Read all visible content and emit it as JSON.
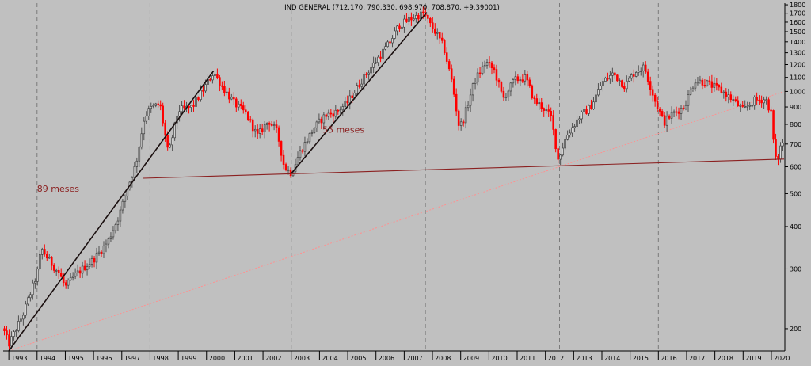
{
  "chart_data": {
    "type": "candlestick",
    "title": "IND GENERAL (712.170, 790.330, 698.970, 708.870, +9.39001)",
    "y_scale": "log",
    "ylim": [
      172,
      1820
    ],
    "xlim": [
      1992.8,
      2020.45
    ],
    "y_ticks": [
      1800,
      1700,
      1600,
      1500,
      1400,
      1300,
      1200,
      1100,
      1000,
      900,
      800,
      700,
      600,
      500,
      400,
      300,
      200
    ],
    "x_ticks": [
      "1993",
      "1994",
      "1995",
      "1996",
      "1997",
      "1998",
      "1999",
      "2000",
      "2001",
      "2002",
      "2003",
      "2004",
      "2005",
      "2006",
      "2007",
      "2008",
      "2009",
      "2010",
      "2011",
      "2012",
      "2013",
      "2014",
      "2015",
      "2016",
      "2017",
      "2018",
      "2019",
      "2020"
    ],
    "vertical_markers": [
      1994.0,
      1998.0,
      2003.0,
      2007.75,
      2012.5,
      2016.0
    ],
    "colors": {
      "up": "#505050",
      "down": "#ff0000",
      "background": "#c0c0c0",
      "line": "#000000",
      "trendline": "#8b2020",
      "dotted": "#ff9090"
    },
    "anchors": [
      [
        1992.8,
        200
      ],
      [
        1993.0,
        180
      ],
      [
        1993.5,
        220
      ],
      [
        1994.0,
        290
      ],
      [
        1994.15,
        345
      ],
      [
        1994.4,
        320
      ],
      [
        1994.8,
        290
      ],
      [
        1995.0,
        265
      ],
      [
        1995.3,
        285
      ],
      [
        1995.7,
        305
      ],
      [
        1996.0,
        320
      ],
      [
        1996.5,
        360
      ],
      [
        1996.9,
        430
      ],
      [
        1997.2,
        520
      ],
      [
        1997.5,
        610
      ],
      [
        1997.8,
        840
      ],
      [
        1998.0,
        890
      ],
      [
        1998.35,
        920
      ],
      [
        1998.65,
        650
      ],
      [
        1999.0,
        880
      ],
      [
        1999.5,
        900
      ],
      [
        2000.0,
        1050
      ],
      [
        2000.25,
        1140
      ],
      [
        2000.6,
        1020
      ],
      [
        2001.0,
        920
      ],
      [
        2001.4,
        860
      ],
      [
        2001.8,
        740
      ],
      [
        2002.2,
        820
      ],
      [
        2002.5,
        760
      ],
      [
        2002.75,
        600
      ],
      [
        2003.0,
        575
      ],
      [
        2003.3,
        660
      ],
      [
        2003.8,
        780
      ],
      [
        2004.2,
        850
      ],
      [
        2004.6,
        870
      ],
      [
        2005.0,
        930
      ],
      [
        2005.5,
        1080
      ],
      [
        2006.0,
        1230
      ],
      [
        2006.5,
        1400
      ],
      [
        2006.8,
        1560
      ],
      [
        2007.3,
        1650
      ],
      [
        2007.7,
        1700
      ],
      [
        2007.9,
        1580
      ],
      [
        2008.1,
        1500
      ],
      [
        2008.4,
        1350
      ],
      [
        2008.7,
        1060
      ],
      [
        2008.95,
        780
      ],
      [
        2009.1,
        830
      ],
      [
        2009.5,
        1080
      ],
      [
        2009.9,
        1220
      ],
      [
        2010.2,
        1150
      ],
      [
        2010.5,
        950
      ],
      [
        2010.9,
        1080
      ],
      [
        2011.3,
        1100
      ],
      [
        2011.6,
        940
      ],
      [
        2011.9,
        900
      ],
      [
        2012.2,
        840
      ],
      [
        2012.45,
        630
      ],
      [
        2012.75,
        740
      ],
      [
        2013.2,
        840
      ],
      [
        2013.6,
        900
      ],
      [
        2014.0,
        1060
      ],
      [
        2014.4,
        1130
      ],
      [
        2014.8,
        1040
      ],
      [
        2015.2,
        1150
      ],
      [
        2015.5,
        1180
      ],
      [
        2015.9,
        930
      ],
      [
        2016.2,
        810
      ],
      [
        2016.5,
        860
      ],
      [
        2016.9,
        900
      ],
      [
        2017.3,
        1080
      ],
      [
        2017.7,
        1060
      ],
      [
        2018.2,
        1010
      ],
      [
        2018.6,
        950
      ],
      [
        2019.0,
        880
      ],
      [
        2019.4,
        940
      ],
      [
        2019.8,
        950
      ],
      [
        2020.0,
        860
      ],
      [
        2020.12,
        640
      ],
      [
        2020.2,
        620
      ],
      [
        2020.35,
        700
      ],
      [
        2020.42,
        709
      ]
    ],
    "annotations": [
      {
        "text": "89 meses",
        "x": 1994.0,
        "y": 507,
        "color": "#8b2020"
      },
      {
        "text": "55 meses",
        "x": 2004.1,
        "y": 755,
        "color": "#8b2020"
      }
    ],
    "lines": [
      {
        "name": "89-month uptrend",
        "points": [
          [
            1993.0,
            172
          ],
          [
            2000.25,
            1150
          ]
        ],
        "color": "#1a0f0f",
        "width": 1.6
      },
      {
        "name": "55-month uptrend",
        "points": [
          [
            2003.0,
            573
          ],
          [
            2007.8,
            1710
          ]
        ],
        "color": "#1a0f0f",
        "width": 1.6
      },
      {
        "name": "long-term support",
        "points": [
          [
            1997.75,
            555
          ],
          [
            2020.45,
            632
          ]
        ],
        "color": "#8b2020",
        "width": 1.1
      },
      {
        "name": "dotted trendline",
        "points": [
          [
            1993.0,
            172
          ],
          [
            2020.45,
            1000
          ]
        ],
        "color": "#ff9090",
        "width": 1,
        "dashed": true
      }
    ]
  }
}
